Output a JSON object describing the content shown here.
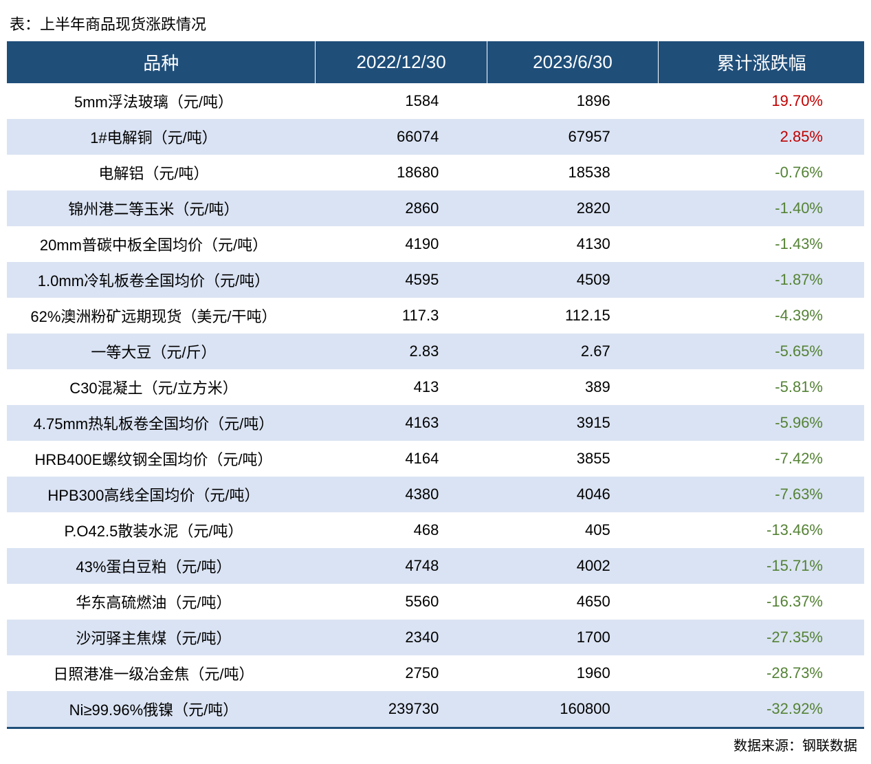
{
  "title": "表：上半年商品现货涨跌情况",
  "footer": "数据来源：钢联数据",
  "styling": {
    "header_bg": "#1f4e79",
    "header_text": "#ffffff",
    "row_alt_bg": "#dae3f3",
    "row_bg": "#ffffff",
    "positive_color": "#c00000",
    "negative_color": "#548235",
    "body_font_size": 22,
    "header_font_size": 26,
    "title_font_size": 22,
    "footer_font_size": 20,
    "border_bottom_color": "#1f4e79"
  },
  "columns": [
    "品种",
    "2022/12/30",
    "2023/6/30",
    "累计涨跌幅"
  ],
  "rows": [
    {
      "name": "5mm浮法玻璃（元/吨）",
      "v1": "1584",
      "v2": "1896",
      "pct": "19.70%",
      "dir": "pos"
    },
    {
      "name": "1#电解铜（元/吨）",
      "v1": "66074",
      "v2": "67957",
      "pct": "2.85%",
      "dir": "pos"
    },
    {
      "name": "电解铝（元/吨）",
      "v1": "18680",
      "v2": "18538",
      "pct": "-0.76%",
      "dir": "neg"
    },
    {
      "name": "锦州港二等玉米（元/吨）",
      "v1": "2860",
      "v2": "2820",
      "pct": "-1.40%",
      "dir": "neg"
    },
    {
      "name": "20mm普碳中板全国均价（元/吨）",
      "v1": "4190",
      "v2": "4130",
      "pct": "-1.43%",
      "dir": "neg"
    },
    {
      "name": "1.0mm冷轧板卷全国均价（元/吨）",
      "v1": "4595",
      "v2": "4509",
      "pct": "-1.87%",
      "dir": "neg"
    },
    {
      "name": "62%澳洲粉矿远期现货（美元/干吨）",
      "v1": "117.3",
      "v2": "112.15",
      "pct": "-4.39%",
      "dir": "neg"
    },
    {
      "name": "一等大豆（元/斤）",
      "v1": "2.83",
      "v2": "2.67",
      "pct": "-5.65%",
      "dir": "neg"
    },
    {
      "name": "C30混凝土（元/立方米）",
      "v1": "413",
      "v2": "389",
      "pct": "-5.81%",
      "dir": "neg"
    },
    {
      "name": "4.75mm热轧板卷全国均价（元/吨）",
      "v1": "4163",
      "v2": "3915",
      "pct": "-5.96%",
      "dir": "neg"
    },
    {
      "name": "HRB400E螺纹钢全国均价（元/吨）",
      "v1": "4164",
      "v2": "3855",
      "pct": "-7.42%",
      "dir": "neg"
    },
    {
      "name": "HPB300高线全国均价（元/吨）",
      "v1": "4380",
      "v2": "4046",
      "pct": "-7.63%",
      "dir": "neg"
    },
    {
      "name": "P.O42.5散装水泥（元/吨）",
      "v1": "468",
      "v2": "405",
      "pct": "-13.46%",
      "dir": "neg"
    },
    {
      "name": "43%蛋白豆粕（元/吨）",
      "v1": "4748",
      "v2": "4002",
      "pct": "-15.71%",
      "dir": "neg"
    },
    {
      "name": "华东高硫燃油（元/吨）",
      "v1": "5560",
      "v2": "4650",
      "pct": "-16.37%",
      "dir": "neg"
    },
    {
      "name": "沙河驿主焦煤（元/吨）",
      "v1": "2340",
      "v2": "1700",
      "pct": "-27.35%",
      "dir": "neg"
    },
    {
      "name": "日照港准一级冶金焦（元/吨）",
      "v1": "2750",
      "v2": "1960",
      "pct": "-28.73%",
      "dir": "neg"
    },
    {
      "name": "Ni≥99.96%俄镍（元/吨）",
      "v1": "239730",
      "v2": "160800",
      "pct": "-32.92%",
      "dir": "neg"
    }
  ]
}
